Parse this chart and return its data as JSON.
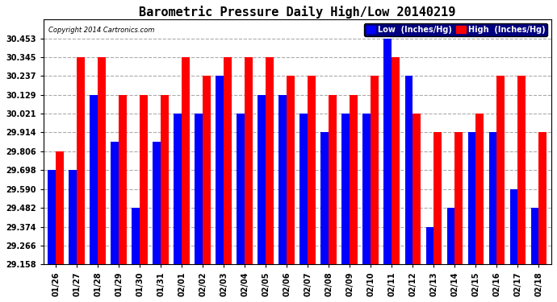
{
  "title": "Barometric Pressure Daily High/Low 20140219",
  "copyright": "Copyright 2014 Cartronics.com",
  "legend_low": "Low  (Inches/Hg)",
  "legend_high": "High  (Inches/Hg)",
  "dates": [
    "01/26",
    "01/27",
    "01/28",
    "01/29",
    "01/30",
    "01/31",
    "02/01",
    "02/02",
    "02/03",
    "02/04",
    "02/05",
    "02/06",
    "02/07",
    "02/08",
    "02/09",
    "02/10",
    "02/11",
    "02/12",
    "02/13",
    "02/14",
    "02/15",
    "02/16",
    "02/17",
    "02/18"
  ],
  "low_values": [
    29.698,
    29.698,
    30.129,
    29.86,
    29.482,
    29.86,
    30.021,
    30.021,
    30.237,
    30.021,
    30.129,
    30.129,
    30.021,
    29.914,
    30.021,
    30.021,
    30.453,
    30.237,
    29.374,
    29.482,
    29.914,
    29.914,
    29.59,
    29.482
  ],
  "high_values": [
    29.806,
    30.345,
    30.345,
    30.129,
    30.129,
    30.129,
    30.345,
    30.237,
    30.345,
    30.345,
    30.345,
    30.237,
    30.237,
    30.129,
    30.129,
    30.237,
    30.345,
    30.021,
    29.914,
    29.914,
    30.021,
    30.237,
    30.237,
    29.914
  ],
  "ylim_min": 29.158,
  "ylim_max": 30.561,
  "yticks": [
    29.158,
    29.266,
    29.374,
    29.482,
    29.59,
    29.698,
    29.806,
    29.914,
    30.021,
    30.129,
    30.237,
    30.345,
    30.453
  ],
  "low_color": "#0000ff",
  "high_color": "#ff0000",
  "bg_color": "#ffffff",
  "grid_color": "#aaaaaa",
  "bar_width": 0.38,
  "title_fontsize": 11,
  "tick_fontsize": 7.0,
  "legend_fontsize": 7.0
}
